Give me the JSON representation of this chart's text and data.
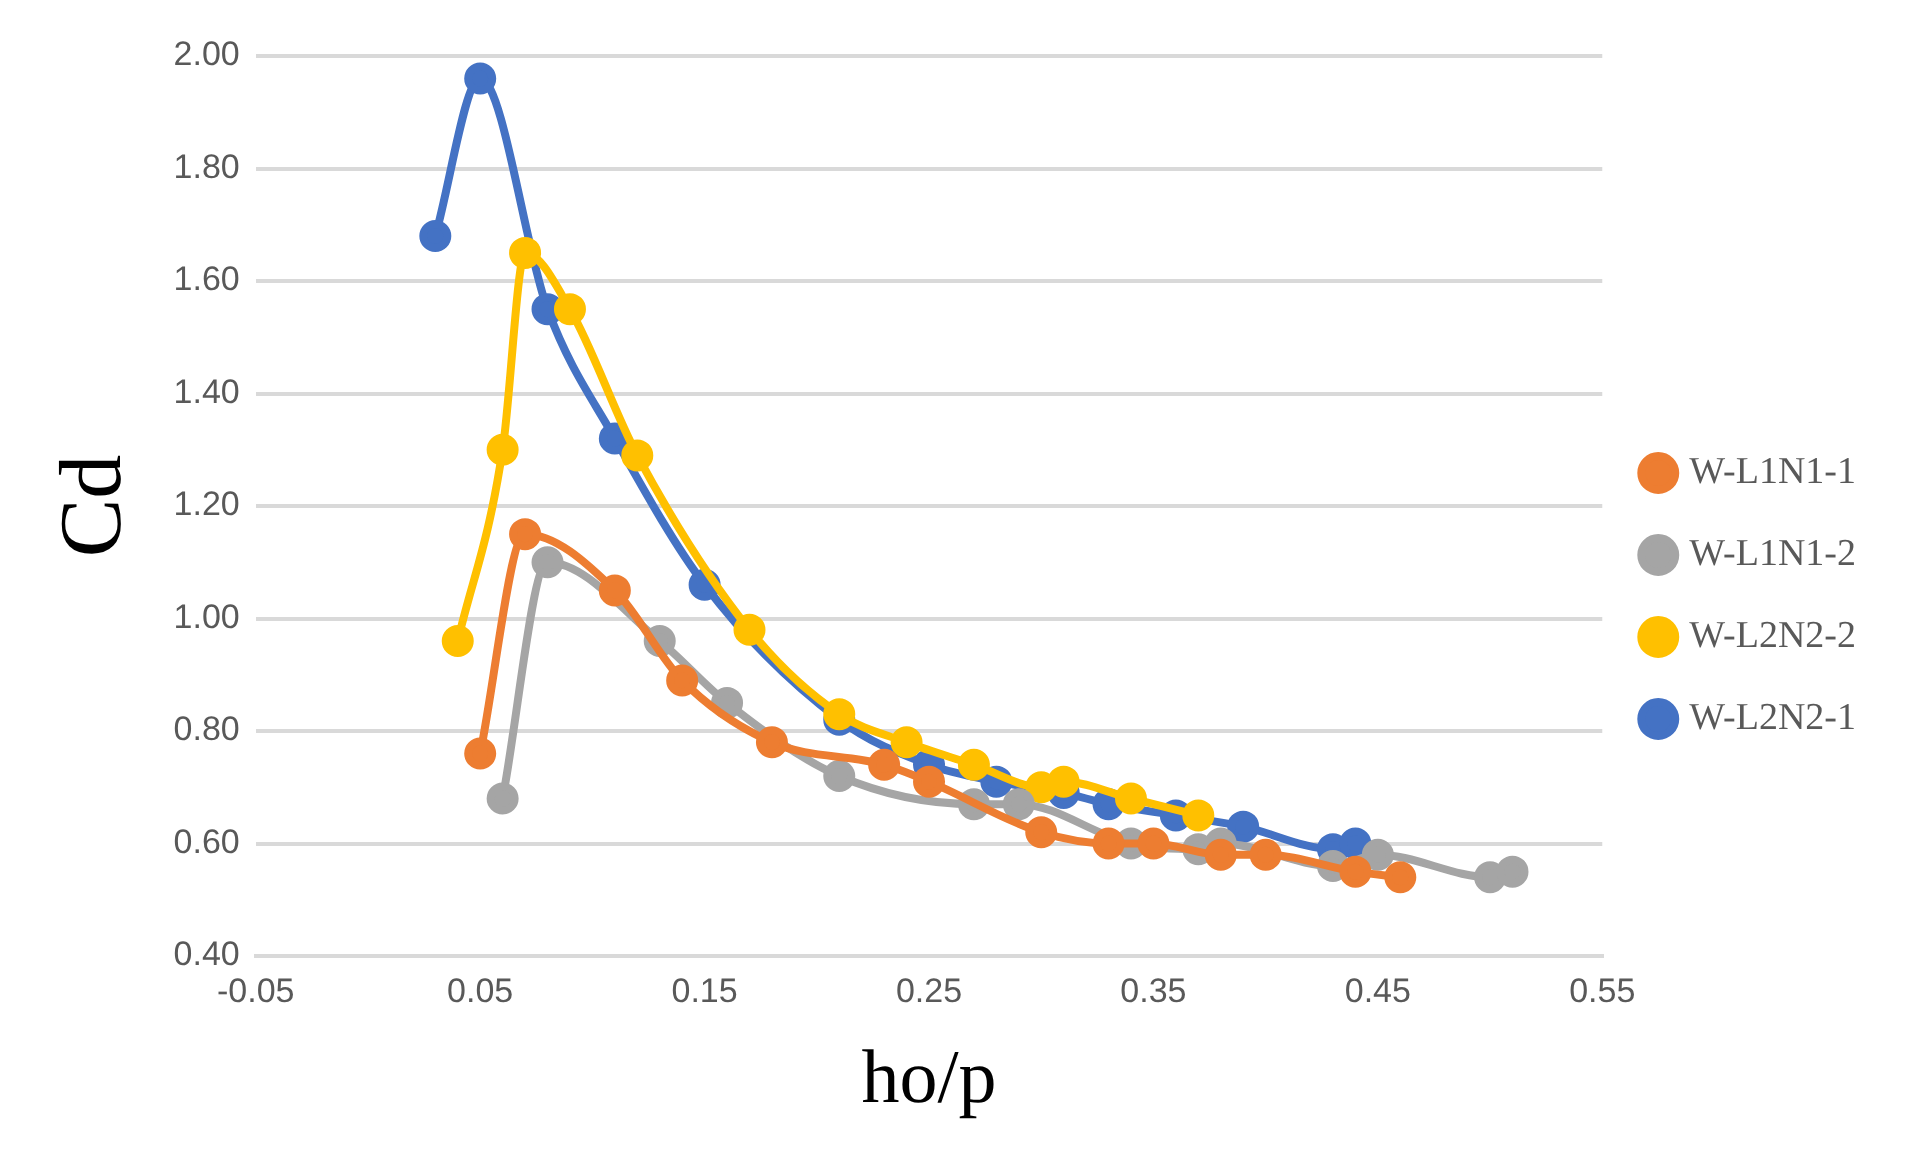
{
  "chart_data": {
    "type": "line",
    "xlabel": "ho/p",
    "ylabel": "Cd",
    "marker": "circle",
    "grid": "y",
    "legend": "right",
    "xlim": [
      -0.05,
      0.55
    ],
    "xticks": [
      -0.05,
      0.05,
      0.15,
      0.25,
      0.35,
      0.45,
      0.55
    ],
    "ylim": [
      0.4,
      2.0
    ],
    "yticks": [
      {
        "value": 0.4,
        "label": "0.40"
      },
      {
        "value": 0.6,
        "label": "0.60"
      },
      {
        "value": 0.8,
        "label": "0.80"
      },
      {
        "value": 1.0,
        "label": "1.00"
      },
      {
        "value": 1.2,
        "label": "1.20"
      },
      {
        "value": 1.4,
        "label": "1.40"
      },
      {
        "value": 1.6,
        "label": "1.60"
      },
      {
        "value": 1.8,
        "label": "1.80"
      },
      {
        "value": 2.0,
        "label": "2.00"
      }
    ],
    "series": [
      {
        "name": "W-L1N1-1",
        "color": "#ed7d31",
        "x": [
          0.05,
          0.07,
          0.11,
          0.14,
          0.18,
          0.23,
          0.25,
          0.3,
          0.33,
          0.35,
          0.38,
          0.4,
          0.44,
          0.46
        ],
        "values": [
          0.76,
          1.15,
          1.05,
          0.89,
          0.78,
          0.74,
          0.71,
          0.62,
          0.6,
          0.6,
          0.58,
          0.58,
          0.55,
          0.54
        ]
      },
      {
        "name": "W-L1N1-2",
        "color": "#a5a5a5",
        "x": [
          0.06,
          0.08,
          0.13,
          0.16,
          0.21,
          0.27,
          0.29,
          0.34,
          0.37,
          0.38,
          0.43,
          0.45,
          0.5,
          0.51
        ],
        "values": [
          0.68,
          1.1,
          0.96,
          0.85,
          0.72,
          0.67,
          0.67,
          0.6,
          0.59,
          0.6,
          0.56,
          0.58,
          0.54,
          0.55
        ]
      },
      {
        "name": "W-L2N2-2",
        "color": "#ffc000",
        "x": [
          0.04,
          0.06,
          0.07,
          0.09,
          0.12,
          0.17,
          0.21,
          0.24,
          0.27,
          0.3,
          0.31,
          0.34,
          0.37
        ],
        "values": [
          0.96,
          1.3,
          1.65,
          1.55,
          1.29,
          0.98,
          0.83,
          0.78,
          0.74,
          0.7,
          0.71,
          0.68,
          0.65
        ]
      },
      {
        "name": "W-L2N2-1",
        "color": "#4472c4",
        "x": [
          0.03,
          0.05,
          0.08,
          0.11,
          0.15,
          0.21,
          0.25,
          0.28,
          0.31,
          0.33,
          0.36,
          0.39,
          0.43,
          0.44
        ],
        "values": [
          1.68,
          1.96,
          1.55,
          1.32,
          1.06,
          0.82,
          0.74,
          0.71,
          0.69,
          0.67,
          0.65,
          0.63,
          0.59,
          0.6
        ]
      }
    ]
  }
}
